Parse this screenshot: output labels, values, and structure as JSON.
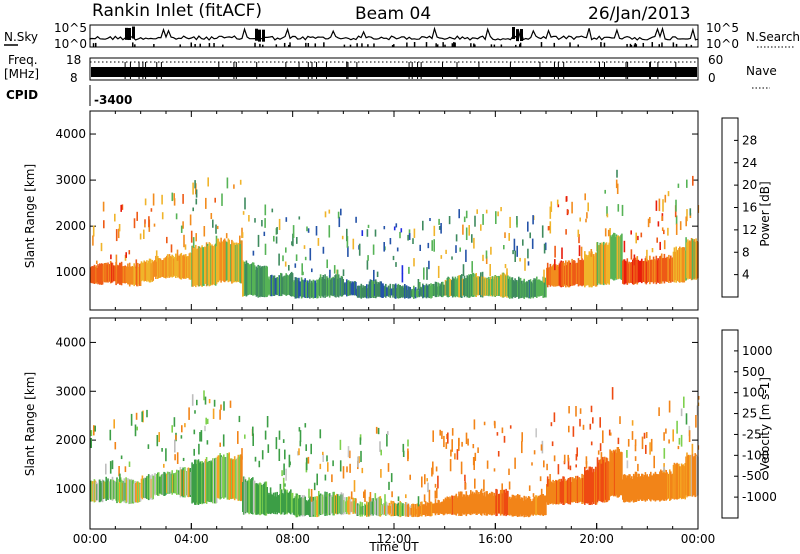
{
  "header": {
    "station": "Rankin Inlet (fitACF)",
    "beam": "Beam 04",
    "date": "26/Jan/2013"
  },
  "strips": {
    "nsky_label": "N.Sky",
    "nsky_ticks": [
      "10^5",
      "10^0"
    ],
    "nsearch_label": "N.Search",
    "nsearch_ticks": [
      "10^5",
      "10^0"
    ],
    "freq_label": "Freq.",
    "freq_unit": "[MHz]",
    "freq_ticks": [
      "18",
      "8"
    ],
    "nave_label": "Nave",
    "nave_ticks": [
      "60",
      "0"
    ],
    "cpid_label": "CPID",
    "cpid_value": "-3400"
  },
  "colors": {
    "power": [
      "#1f2be0",
      "#2553a8",
      "#3e8a5e",
      "#56b356",
      "#f0b42a",
      "#f28c1e",
      "#ee5a16",
      "#e81c0c"
    ],
    "velocity": [
      "#e81c0c",
      "#ee4a12",
      "#f28418",
      "#f5a422",
      "#bdbdbd",
      "#c8c8c8",
      "#7ed04e",
      "#3c9e46",
      "#2e7d70",
      "#2a55ae"
    ]
  },
  "chart_data": [
    {
      "type": "heatmap",
      "panel": "power",
      "ylabel": "Slant Range [km]",
      "yticks": [
        "1000",
        "2000",
        "3000",
        "4000"
      ],
      "ylim": [
        180,
        4500
      ],
      "xlim": [
        0,
        24
      ],
      "colorbar_label": "Power [dB]",
      "colorbar_ticks": [
        "4",
        "8",
        "12",
        "16",
        "20",
        "24",
        "28"
      ],
      "x": [
        0,
        0.5,
        1,
        1.5,
        2,
        2.5,
        3,
        3.5,
        4,
        4.5,
        5,
        5.5,
        6,
        6.5,
        7,
        7.5,
        8,
        8.5,
        9,
        9.5,
        10,
        10.5,
        11,
        11.5,
        12,
        12.5,
        13,
        13.5,
        14,
        14.5,
        15,
        15.5,
        16,
        16.5,
        17,
        17.5,
        18,
        18.5,
        19,
        19.5,
        20,
        20.5,
        21,
        21.5,
        22,
        22.5,
        23,
        23.5
      ],
      "echo_low_km": [
        750,
        780,
        740,
        720,
        800,
        880,
        900,
        850,
        700,
        720,
        800,
        780,
        500,
        480,
        500,
        500,
        450,
        450,
        470,
        480,
        500,
        450,
        460,
        470,
        450,
        450,
        460,
        480,
        480,
        470,
        480,
        480,
        470,
        450,
        450,
        470,
        700,
        700,
        720,
        700,
        750,
        850,
        750,
        760,
        770,
        780,
        800,
        850
      ],
      "echo_high_km": [
        1150,
        1200,
        1180,
        1150,
        1250,
        1300,
        1350,
        1400,
        1550,
        1600,
        1700,
        1650,
        1200,
        1100,
        900,
        950,
        850,
        800,
        900,
        900,
        800,
        700,
        800,
        700,
        700,
        650,
        700,
        750,
        850,
        900,
        950,
        900,
        950,
        850,
        800,
        850,
        1150,
        1200,
        1250,
        1400,
        1600,
        1800,
        1250,
        1300,
        1300,
        1350,
        1500,
        1700
      ],
      "values": [
        26,
        27,
        26,
        24,
        22,
        22,
        21,
        22,
        19,
        20,
        21,
        20,
        15,
        14,
        13,
        14,
        12,
        13,
        14,
        13,
        12,
        11,
        12,
        10,
        11,
        12,
        13,
        14,
        15,
        16,
        17,
        16,
        16,
        14,
        13,
        14,
        26,
        27,
        26,
        22,
        20,
        18,
        28,
        28,
        27,
        26,
        22,
        20
      ]
    },
    {
      "type": "heatmap",
      "panel": "velocity",
      "ylabel": "Slant Range [km]",
      "yticks": [
        "1000",
        "2000",
        "3000",
        "4000"
      ],
      "ylim": [
        180,
        4500
      ],
      "xlim": [
        0,
        24
      ],
      "xlabel": "Time UT",
      "xticks": [
        "00:00",
        "04:00",
        "08:00",
        "12:00",
        "16:00",
        "20:00",
        "00:00"
      ],
      "colorbar_label": "Velocity [m s-1]",
      "colorbar_ticks": [
        "-1000",
        "-500",
        "-100",
        "-25",
        "25",
        "100",
        "500",
        "1000"
      ],
      "x": [
        0,
        0.5,
        1,
        1.5,
        2,
        2.5,
        3,
        3.5,
        4,
        4.5,
        5,
        5.5,
        6,
        6.5,
        7,
        7.5,
        8,
        8.5,
        9,
        9.5,
        10,
        10.5,
        11,
        11.5,
        12,
        12.5,
        13,
        13.5,
        14,
        14.5,
        15,
        15.5,
        16,
        16.5,
        17,
        17.5,
        18,
        18.5,
        19,
        19.5,
        20,
        20.5,
        21,
        21.5,
        22,
        22.5,
        23,
        23.5
      ],
      "echo_low_km": [
        750,
        780,
        740,
        720,
        800,
        880,
        900,
        850,
        700,
        720,
        800,
        780,
        500,
        480,
        500,
        500,
        450,
        450,
        470,
        480,
        500,
        450,
        460,
        470,
        450,
        450,
        460,
        480,
        480,
        470,
        480,
        480,
        470,
        450,
        450,
        470,
        700,
        700,
        720,
        700,
        750,
        850,
        750,
        760,
        770,
        780,
        800,
        850
      ],
      "echo_high_km": [
        1150,
        1200,
        1180,
        1150,
        1250,
        1300,
        1350,
        1400,
        1550,
        1600,
        1700,
        1650,
        1200,
        1100,
        900,
        950,
        850,
        800,
        900,
        900,
        800,
        700,
        800,
        700,
        700,
        650,
        700,
        750,
        850,
        900,
        950,
        900,
        950,
        850,
        800,
        850,
        1150,
        1200,
        1250,
        1400,
        1600,
        1800,
        1250,
        1300,
        1300,
        1350,
        1500,
        1700
      ],
      "values": [
        50,
        80,
        30,
        0,
        60,
        100,
        20,
        -10,
        200,
        80,
        50,
        -30,
        100,
        150,
        300,
        200,
        120,
        80,
        100,
        60,
        -20,
        50,
        30,
        -50,
        20,
        -100,
        -200,
        -300,
        -400,
        -350,
        -300,
        -250,
        -500,
        -400,
        -300,
        -200,
        -400,
        -500,
        -450,
        -600,
        -500,
        -400,
        -200,
        -300,
        -250,
        -200,
        -150,
        -100
      ]
    }
  ]
}
